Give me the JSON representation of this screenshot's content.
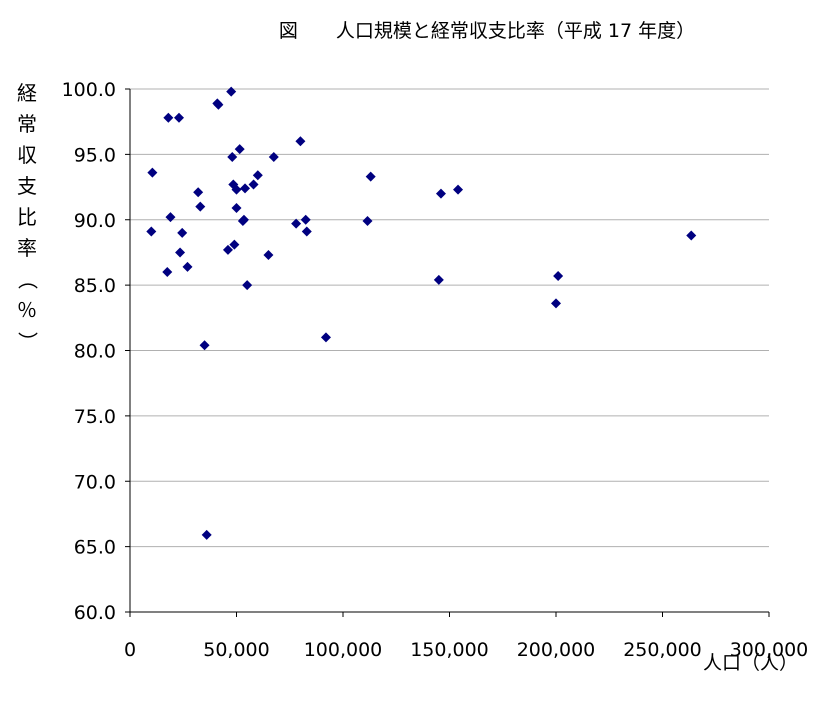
{
  "chart_data": {
    "type": "scatter",
    "title": "図　　人口規模と経常収支比率（平成 17 年度）",
    "xlabel": "人口（人）",
    "ylabel": "経常収支比率（％）",
    "xlim": [
      0,
      300000
    ],
    "ylim": [
      60,
      100
    ],
    "x_ticks": [
      0,
      50000,
      100000,
      150000,
      200000,
      250000,
      300000
    ],
    "x_tick_labels": [
      "0",
      "50,000",
      "100,000",
      "150,000",
      "200,000",
      "250,000",
      "300,000"
    ],
    "y_ticks": [
      60,
      65,
      70,
      75,
      80,
      85,
      90,
      95,
      100
    ],
    "y_tick_labels": [
      "60.0",
      "65.0",
      "70.0",
      "75.0",
      "80.0",
      "85.0",
      "90.0",
      "95.0",
      "100.0"
    ],
    "grid": "horizontal",
    "marker_color": "#000080",
    "points": [
      {
        "x": 10500,
        "y": 93.6
      },
      {
        "x": 10000,
        "y": 89.1
      },
      {
        "x": 17500,
        "y": 86.0
      },
      {
        "x": 18000,
        "y": 97.8
      },
      {
        "x": 19000,
        "y": 90.2
      },
      {
        "x": 23000,
        "y": 97.8
      },
      {
        "x": 23500,
        "y": 87.5
      },
      {
        "x": 24500,
        "y": 89.0
      },
      {
        "x": 27000,
        "y": 86.4
      },
      {
        "x": 32000,
        "y": 92.1
      },
      {
        "x": 33000,
        "y": 91.0
      },
      {
        "x": 35000,
        "y": 80.4
      },
      {
        "x": 36000,
        "y": 65.9
      },
      {
        "x": 41000,
        "y": 98.9
      },
      {
        "x": 41500,
        "y": 98.8
      },
      {
        "x": 46000,
        "y": 87.7
      },
      {
        "x": 47500,
        "y": 99.8
      },
      {
        "x": 48000,
        "y": 94.8
      },
      {
        "x": 48500,
        "y": 92.7
      },
      {
        "x": 49000,
        "y": 88.1
      },
      {
        "x": 50000,
        "y": 92.3
      },
      {
        "x": 50000,
        "y": 90.9
      },
      {
        "x": 51500,
        "y": 95.4
      },
      {
        "x": 53000,
        "y": 89.9
      },
      {
        "x": 53500,
        "y": 90.0
      },
      {
        "x": 54000,
        "y": 92.4
      },
      {
        "x": 55000,
        "y": 85.0
      },
      {
        "x": 58000,
        "y": 92.7
      },
      {
        "x": 60000,
        "y": 93.4
      },
      {
        "x": 65000,
        "y": 87.3
      },
      {
        "x": 67500,
        "y": 94.8
      },
      {
        "x": 78000,
        "y": 89.7
      },
      {
        "x": 80000,
        "y": 96.0
      },
      {
        "x": 82500,
        "y": 90.0
      },
      {
        "x": 83000,
        "y": 89.1
      },
      {
        "x": 92000,
        "y": 81.0
      },
      {
        "x": 111500,
        "y": 89.9
      },
      {
        "x": 113000,
        "y": 93.3
      },
      {
        "x": 145000,
        "y": 85.4
      },
      {
        "x": 146000,
        "y": 92.0
      },
      {
        "x": 154000,
        "y": 92.3
      },
      {
        "x": 200000,
        "y": 83.6
      },
      {
        "x": 201000,
        "y": 85.7
      },
      {
        "x": 263500,
        "y": 88.8
      }
    ]
  }
}
